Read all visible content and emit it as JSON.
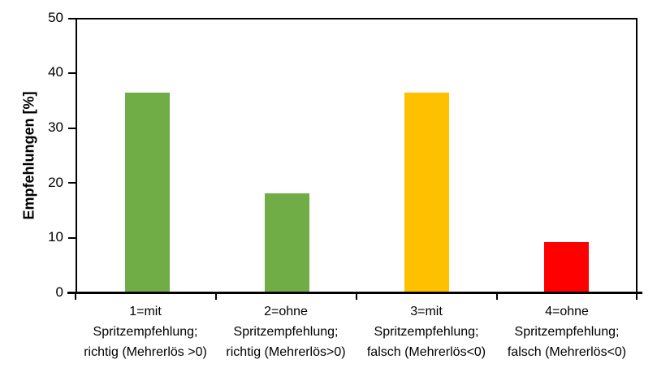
{
  "chart_data": {
    "type": "bar",
    "title": "",
    "xlabel": "",
    "ylabel": "Empfehlungen [%]",
    "ylim": [
      0,
      50
    ],
    "yticks": [
      "0",
      "10",
      "20",
      "30",
      "40",
      "50"
    ],
    "grid": false,
    "legend": false,
    "categories": [
      "1=mit\nSpritzempfehlung;\nrichtig (Mehrerlös >0)",
      "2=ohne\nSpritzempfehlung;\nrichtig (Mehrerlös>0)",
      "3=mit\nSpritzempfehlung;\nfalsch (Mehrerlös<0)",
      "4=ohne\nSpritzempfehlung;\nfalsch (Mehrerlös<0)"
    ],
    "values": [
      36.6,
      18.2,
      36.6,
      9.3
    ],
    "bar_colors": [
      "#70AD47",
      "#70AD47",
      "#FFC000",
      "#FF0000"
    ],
    "axis_color": "#000000",
    "background_color": "#FFFFFF"
  }
}
